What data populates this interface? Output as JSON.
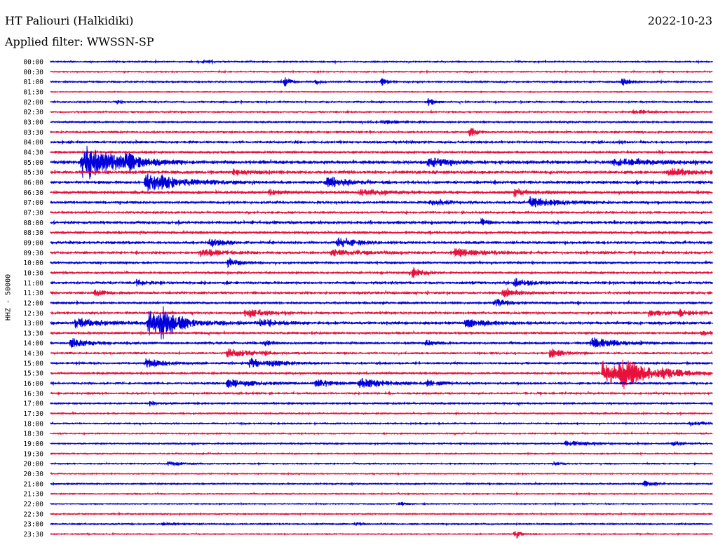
{
  "header": {
    "station": "HT Paliouri (Halkidiki)",
    "date": "2022-10-23",
    "filter": "Applied filter: WWSSN-SP"
  },
  "chart_data": {
    "type": "line",
    "title": "HT Paliouri (Halkidiki)",
    "ylabel": "HHZ - 50000",
    "row_labels": [
      "00:00",
      "00:30",
      "01:00",
      "01:30",
      "02:00",
      "02:30",
      "03:00",
      "03:30",
      "04:00",
      "04:30",
      "05:00",
      "05:30",
      "06:00",
      "06:30",
      "07:00",
      "07:30",
      "08:00",
      "08:30",
      "09:00",
      "09:30",
      "10:00",
      "10:30",
      "11:00",
      "11:30",
      "12:00",
      "12:30",
      "13:00",
      "13:30",
      "14:00",
      "14:30",
      "15:00",
      "15:30",
      "16:00",
      "16:30",
      "17:00",
      "17:30",
      "18:00",
      "18:30",
      "19:00",
      "19:30",
      "20:00",
      "20:30",
      "21:00",
      "21:30",
      "22:00",
      "22:30",
      "23:00",
      "23:30"
    ],
    "series_colors": [
      "#0000dd",
      "#e8103c"
    ],
    "trace_duration_minutes": 30,
    "noise": [
      0.9,
      0.8,
      1.0,
      0.5,
      1.0,
      0.9,
      1.0,
      1.1,
      1.3,
      1.2,
      1.8,
      1.6,
      1.5,
      1.5,
      1.4,
      1.2,
      1.5,
      1.4,
      1.4,
      1.4,
      1.2,
      1.2,
      1.4,
      1.3,
      1.2,
      1.3,
      1.5,
      1.2,
      1.3,
      1.1,
      1.2,
      1.2,
      1.2,
      1.1,
      1.0,
      0.9,
      0.9,
      0.8,
      0.9,
      0.8,
      0.8,
      0.7,
      0.9,
      0.8,
      0.7,
      0.8,
      0.9,
      0.7
    ],
    "events": [
      {
        "row": 0,
        "t": 6.9,
        "a": 3,
        "d": 0.4
      },
      {
        "row": 2,
        "t": 10.6,
        "a": 10,
        "d": 0.2
      },
      {
        "row": 2,
        "t": 12.0,
        "a": 5,
        "d": 0.2
      },
      {
        "row": 2,
        "t": 15.0,
        "a": 6,
        "d": 0.3
      },
      {
        "row": 2,
        "t": 25.9,
        "a": 7,
        "d": 0.3
      },
      {
        "row": 4,
        "t": 17.1,
        "a": 9,
        "d": 0.2
      },
      {
        "row": 4,
        "t": 3.0,
        "a": 3,
        "d": 0.2
      },
      {
        "row": 5,
        "t": 26.4,
        "a": 3,
        "d": 0.8
      },
      {
        "row": 6,
        "t": 15.0,
        "a": 3,
        "d": 0.8
      },
      {
        "row": 7,
        "t": 19.0,
        "a": 11,
        "d": 0.2
      },
      {
        "row": 10,
        "t": 1.4,
        "a": 38,
        "d": 1.2
      },
      {
        "row": 10,
        "t": 3.4,
        "a": 8,
        "d": 1.0
      },
      {
        "row": 10,
        "t": 17.1,
        "a": 12,
        "d": 0.6
      },
      {
        "row": 10,
        "t": 25.5,
        "a": 5,
        "d": 2.0
      },
      {
        "row": 11,
        "t": 8.2,
        "a": 4,
        "d": 1.0
      },
      {
        "row": 11,
        "t": 28.0,
        "a": 10,
        "d": 0.7
      },
      {
        "row": 12,
        "t": 4.3,
        "a": 20,
        "d": 1.3
      },
      {
        "row": 12,
        "t": 12.5,
        "a": 10,
        "d": 0.8
      },
      {
        "row": 13,
        "t": 9.9,
        "a": 5,
        "d": 0.5
      },
      {
        "row": 13,
        "t": 14.0,
        "a": 5,
        "d": 1.0
      },
      {
        "row": 13,
        "t": 21.0,
        "a": 6,
        "d": 0.6
      },
      {
        "row": 14,
        "t": 21.7,
        "a": 10,
        "d": 1.0
      },
      {
        "row": 14,
        "t": 17.2,
        "a": 4,
        "d": 1.0
      },
      {
        "row": 16,
        "t": 19.5,
        "a": 9,
        "d": 0.2
      },
      {
        "row": 18,
        "t": 7.2,
        "a": 7,
        "d": 0.6
      },
      {
        "row": 18,
        "t": 13.0,
        "a": 8,
        "d": 0.8
      },
      {
        "row": 19,
        "t": 6.8,
        "a": 7,
        "d": 0.8
      },
      {
        "row": 19,
        "t": 12.7,
        "a": 6,
        "d": 1.2
      },
      {
        "row": 19,
        "t": 18.3,
        "a": 8,
        "d": 1.0
      },
      {
        "row": 20,
        "t": 8.0,
        "a": 9,
        "d": 0.5
      },
      {
        "row": 21,
        "t": 16.3,
        "a": 10,
        "d": 0.5
      },
      {
        "row": 22,
        "t": 3.9,
        "a": 5,
        "d": 0.5
      },
      {
        "row": 22,
        "t": 21.0,
        "a": 6,
        "d": 0.7
      },
      {
        "row": 23,
        "t": 20.5,
        "a": 11,
        "d": 0.5
      },
      {
        "row": 23,
        "t": 2.0,
        "a": 5,
        "d": 0.4
      },
      {
        "row": 24,
        "t": 20.1,
        "a": 7,
        "d": 0.5
      },
      {
        "row": 25,
        "t": 8.8,
        "a": 7,
        "d": 1.0
      },
      {
        "row": 25,
        "t": 27.1,
        "a": 7,
        "d": 0.6
      },
      {
        "row": 25,
        "t": 28.5,
        "a": 5,
        "d": 1.0
      },
      {
        "row": 26,
        "t": 1.1,
        "a": 8,
        "d": 1.0
      },
      {
        "row": 26,
        "t": 4.4,
        "a": 20,
        "d": 1.3
      },
      {
        "row": 26,
        "t": 5.0,
        "a": 22,
        "d": 0.5
      },
      {
        "row": 26,
        "t": 9.5,
        "a": 6,
        "d": 0.8
      },
      {
        "row": 26,
        "t": 18.8,
        "a": 8,
        "d": 0.8
      },
      {
        "row": 27,
        "t": 29.5,
        "a": 4,
        "d": 0.4
      },
      {
        "row": 28,
        "t": 0.9,
        "a": 7,
        "d": 0.8
      },
      {
        "row": 28,
        "t": 9.7,
        "a": 7,
        "d": 0.3
      },
      {
        "row": 28,
        "t": 17.0,
        "a": 5,
        "d": 0.3
      },
      {
        "row": 28,
        "t": 24.5,
        "a": 8,
        "d": 1.0
      },
      {
        "row": 29,
        "t": 8.0,
        "a": 9,
        "d": 1.0
      },
      {
        "row": 29,
        "t": 22.6,
        "a": 7,
        "d": 0.6
      },
      {
        "row": 30,
        "t": 4.3,
        "a": 8,
        "d": 0.7
      },
      {
        "row": 30,
        "t": 9.0,
        "a": 8,
        "d": 0.8
      },
      {
        "row": 30,
        "t": 10.0,
        "a": 5,
        "d": 0.5
      },
      {
        "row": 31,
        "t": 25.0,
        "a": 18,
        "d": 1.6
      },
      {
        "row": 31,
        "t": 25.8,
        "a": 24,
        "d": 0.8
      },
      {
        "row": 31,
        "t": 27.7,
        "a": 10,
        "d": 0.6
      },
      {
        "row": 32,
        "t": 8.0,
        "a": 8,
        "d": 1.0
      },
      {
        "row": 32,
        "t": 12.0,
        "a": 8,
        "d": 0.6
      },
      {
        "row": 32,
        "t": 14.0,
        "a": 8,
        "d": 1.2
      },
      {
        "row": 32,
        "t": 17.0,
        "a": 6,
        "d": 0.6
      },
      {
        "row": 34,
        "t": 4.5,
        "a": 6,
        "d": 0.2
      },
      {
        "row": 34,
        "t": 30.0,
        "a": 5,
        "d": 0.2
      },
      {
        "row": 36,
        "t": 29.0,
        "a": 4,
        "d": 0.5
      },
      {
        "row": 38,
        "t": 23.3,
        "a": 4,
        "d": 0.8
      },
      {
        "row": 38,
        "t": 28.2,
        "a": 3,
        "d": 0.5
      },
      {
        "row": 40,
        "t": 5.3,
        "a": 4,
        "d": 0.5
      },
      {
        "row": 40,
        "t": 22.8,
        "a": 3,
        "d": 0.3
      },
      {
        "row": 42,
        "t": 26.9,
        "a": 5,
        "d": 0.4
      },
      {
        "row": 42,
        "t": 30.0,
        "a": 3,
        "d": 1.5
      },
      {
        "row": 44,
        "t": 15.8,
        "a": 4,
        "d": 0.2
      },
      {
        "row": 46,
        "t": 13.8,
        "a": 4,
        "d": 0.2
      },
      {
        "row": 46,
        "t": 5.0,
        "a": 2,
        "d": 0.8
      },
      {
        "row": 47,
        "t": 21.0,
        "a": 8,
        "d": 0.3
      }
    ]
  }
}
